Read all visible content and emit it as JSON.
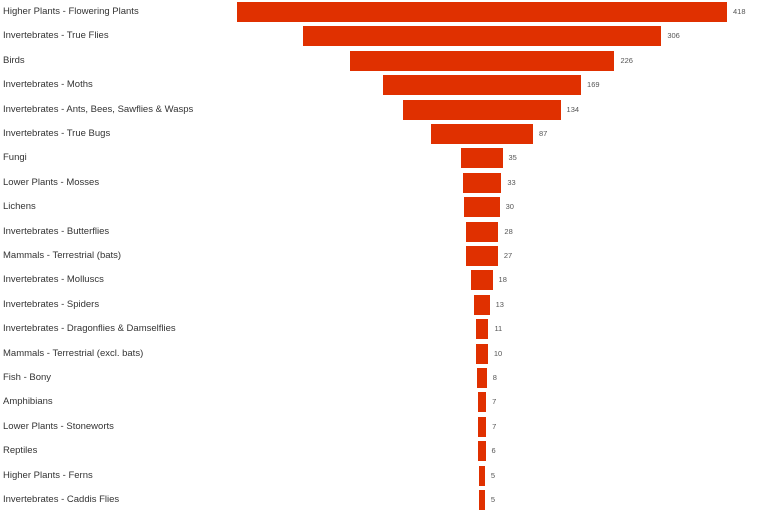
{
  "chart_data": {
    "type": "bar",
    "orientation": "horizontal",
    "style": "funnel",
    "title": "",
    "xlabel": "",
    "ylabel": "",
    "bar_color": "#e03000",
    "categories": [
      "Higher Plants - Flowering Plants",
      "Invertebrates - True Flies",
      "Birds",
      "Invertebrates - Moths",
      "Invertebrates - Ants, Bees, Sawflies & Wasps",
      "Invertebrates - True Bugs",
      "Fungi",
      "Lower Plants - Mosses",
      "Lichens",
      "Invertebrates - Butterflies",
      "Mammals - Terrestrial (bats)",
      "Invertebrates - Molluscs",
      "Invertebrates - Spiders",
      "Invertebrates - Dragonflies & Damselflies",
      "Mammals - Terrestrial (excl. bats)",
      "Fish - Bony",
      "Amphibians",
      "Lower Plants - Stoneworts",
      "Reptiles",
      "Higher Plants - Ferns",
      "Invertebrates - Caddis Flies"
    ],
    "values": [
      418,
      306,
      226,
      169,
      134,
      87,
      35,
      33,
      30,
      28,
      27,
      18,
      13,
      11,
      10,
      8,
      7,
      7,
      6,
      5,
      5
    ],
    "labels": [
      "418",
      "306",
      "226",
      "169",
      "134",
      "87",
      "35",
      "33",
      "30",
      "28",
      "27",
      "18",
      "13",
      "11",
      "10",
      "8",
      "7",
      "7",
      "6",
      "5",
      "5"
    ]
  }
}
